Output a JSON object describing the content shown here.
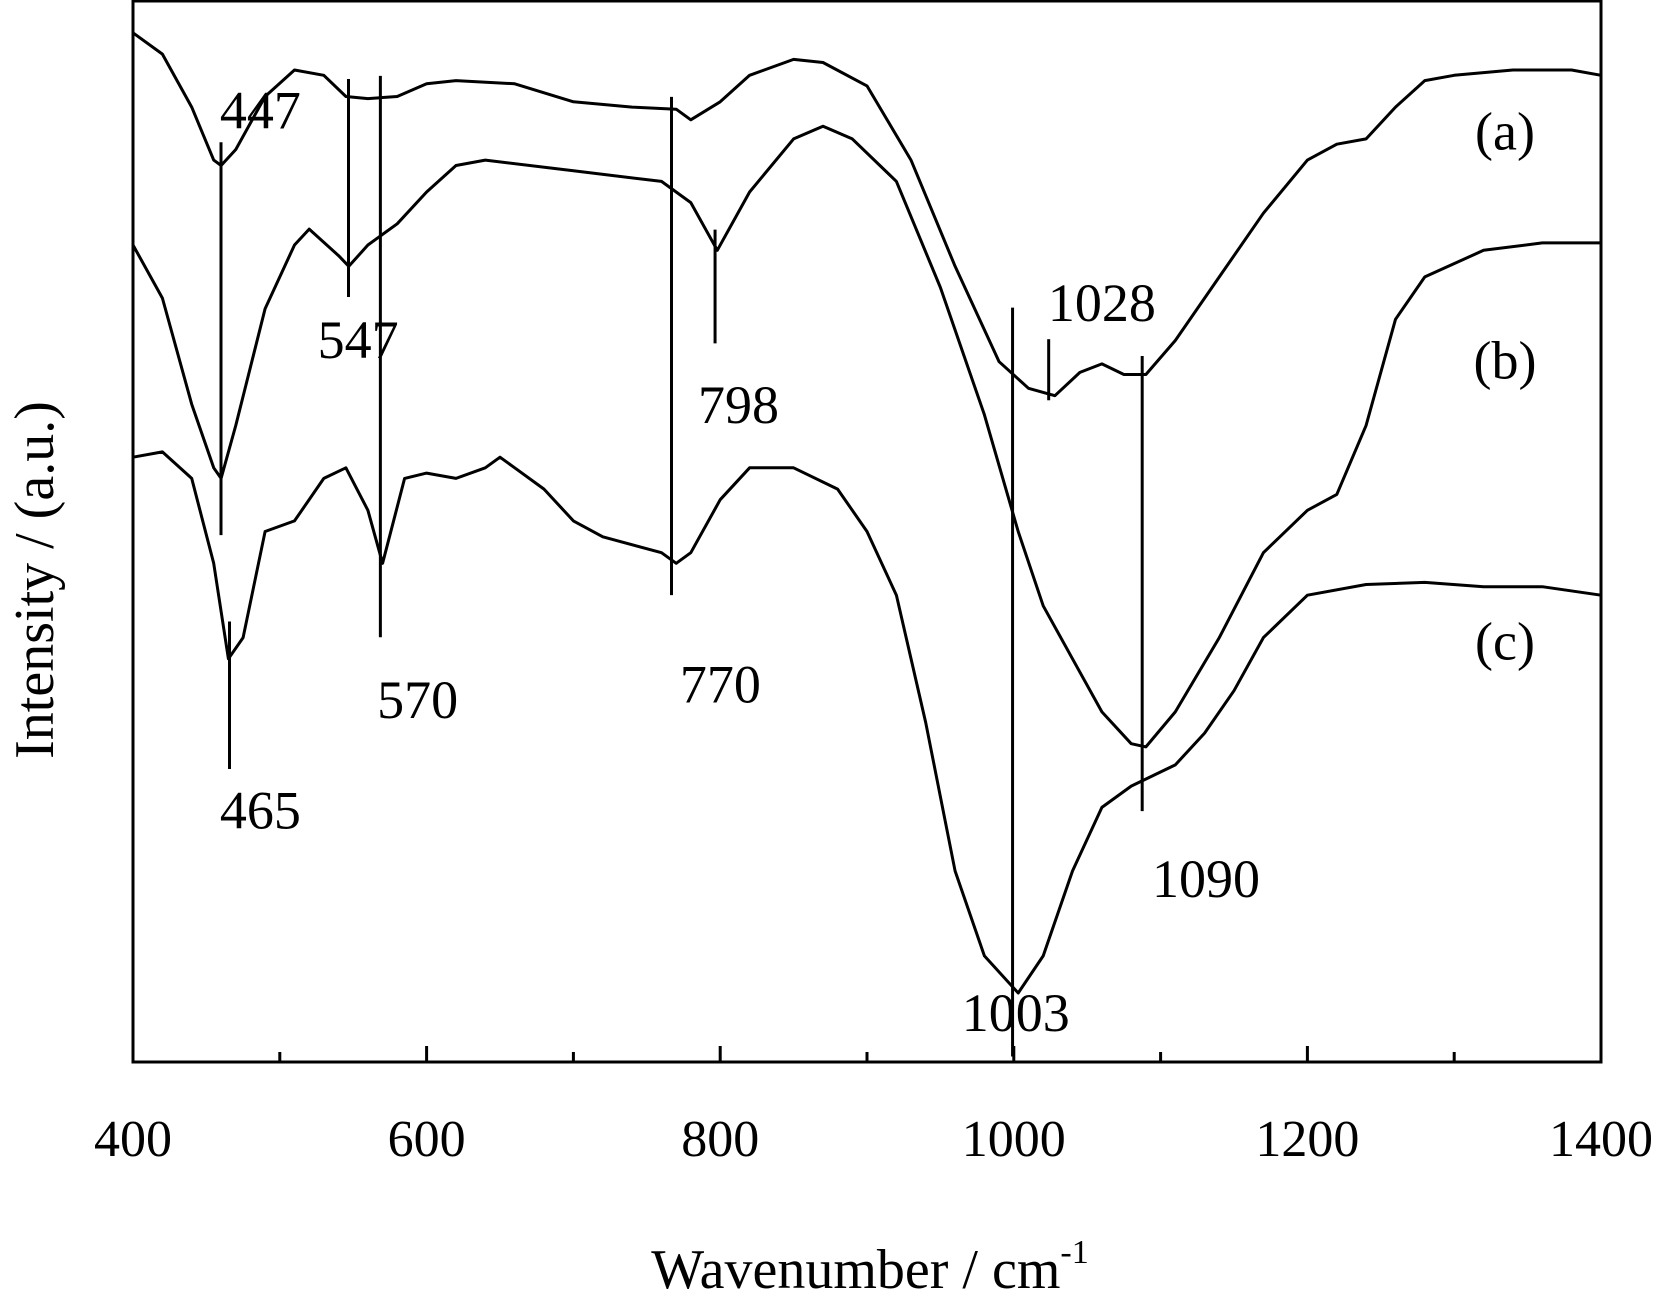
{
  "chart_data": {
    "type": "line",
    "xlabel": "Wavenumber / cm",
    "xlabel_sup": "-1",
    "ylabel": "Intensity / (a.u.)",
    "xlim": [
      400,
      1400
    ],
    "ylim": [
      0,
      100
    ],
    "xticks": [
      400,
      600,
      800,
      1000,
      1200,
      1400
    ],
    "xminorticks": [
      500,
      700,
      900,
      1100,
      1300
    ],
    "color": "#000000",
    "series": [
      {
        "name": "(a)",
        "x": [
          400,
          420,
          440,
          455,
          460,
          470,
          490,
          510,
          530,
          545,
          560,
          580,
          600,
          620,
          660,
          700,
          740,
          770,
          780,
          800,
          820,
          850,
          870,
          900,
          930,
          960,
          990,
          1010,
          1028,
          1045,
          1060,
          1075,
          1090,
          1110,
          1140,
          1170,
          1200,
          1220,
          1240,
          1260,
          1280,
          1300,
          1340,
          1380,
          1400
        ],
        "values": [
          97,
          95,
          90,
          85,
          84.5,
          86,
          91,
          93.5,
          93,
          91,
          90.8,
          91,
          92.2,
          92.5,
          92.2,
          90.5,
          90,
          89.8,
          88.8,
          90.5,
          93,
          94.5,
          94.2,
          92,
          85,
          75,
          66,
          63.5,
          62.8,
          65,
          65.8,
          64.8,
          64.8,
          68,
          74,
          80,
          85,
          86.5,
          87,
          90,
          92.5,
          93,
          93.5,
          93.5,
          93
        ]
      },
      {
        "name": "(b)",
        "x": [
          400,
          420,
          440,
          455,
          460,
          470,
          490,
          510,
          520,
          540,
          547,
          560,
          580,
          600,
          620,
          640,
          700,
          760,
          780,
          798,
          820,
          850,
          870,
          890,
          920,
          950,
          980,
          1003,
          1020,
          1040,
          1060,
          1080,
          1090,
          1110,
          1140,
          1170,
          1200,
          1220,
          1240,
          1260,
          1280,
          1320,
          1360,
          1400
        ],
        "values": [
          77,
          72,
          62,
          56,
          55,
          60,
          71,
          77,
          78.5,
          76,
          75,
          77,
          79,
          82,
          84.5,
          85,
          84,
          83,
          81,
          76.5,
          82,
          87,
          88.2,
          87,
          83,
          73,
          61,
          50,
          43,
          38,
          33,
          30,
          29.7,
          33,
          40,
          48,
          52,
          53.5,
          60,
          70,
          74,
          76.5,
          77.2,
          77.2
        ]
      },
      {
        "name": "(c)",
        "x": [
          400,
          420,
          440,
          455,
          465,
          475,
          490,
          510,
          530,
          545,
          560,
          570,
          585,
          600,
          620,
          640,
          650,
          660,
          680,
          700,
          720,
          760,
          770,
          780,
          800,
          820,
          850,
          880,
          900,
          920,
          940,
          960,
          980,
          1003,
          1020,
          1040,
          1060,
          1080,
          1110,
          1130,
          1150,
          1170,
          1200,
          1240,
          1280,
          1320,
          1360,
          1400
        ],
        "values": [
          57,
          57.5,
          55,
          47,
          38,
          40,
          50,
          51,
          55,
          56,
          52,
          47,
          55,
          55.5,
          55,
          56,
          57,
          56,
          54,
          51,
          49.5,
          48,
          47,
          48,
          53,
          56,
          56,
          54,
          50,
          44,
          32,
          18,
          10,
          6.5,
          10,
          18,
          24,
          26,
          28,
          31,
          35,
          40,
          44,
          45,
          45.2,
          44.8,
          44.8,
          44
        ]
      }
    ],
    "annotations": [
      "447",
      "547",
      "570",
      "465",
      "798",
      "770",
      "1028",
      "1003",
      "1090"
    ]
  }
}
